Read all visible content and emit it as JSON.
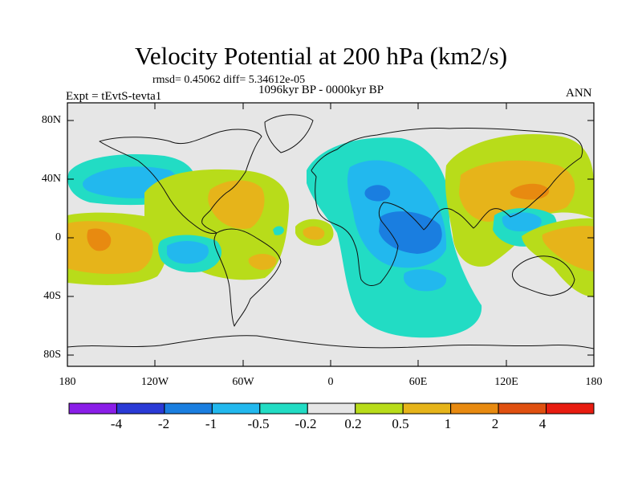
{
  "title": "Velocity Potential at 200 hPa (km2/s)",
  "stats_line": "rmsd= 0.45062 diff= 5.34612e-05",
  "period": "1096kyr BP - 0000kyr BP",
  "experiment": "Expt = tEvtS-tevta1",
  "season": "ANN",
  "map": {
    "lat_labels": [
      "80N",
      "40N",
      "0",
      "40S",
      "80S"
    ],
    "lon_labels": [
      "180",
      "120W",
      "60W",
      "0",
      "60E",
      "120E",
      "180"
    ]
  },
  "colorbar": {
    "colors": [
      "#8a1ee8",
      "#2a3ad6",
      "#1a7ee0",
      "#22b8ee",
      "#22dcc4",
      "#e6e6e6",
      "#b8dc1a",
      "#e6b41a",
      "#e88a10",
      "#e05010",
      "#e81c10"
    ],
    "labels": [
      "-4",
      "-2",
      "-1",
      "-0.5",
      "-0.2",
      "0.2",
      "0.5",
      "1",
      "2",
      "4"
    ]
  },
  "palette": {
    "neutral": "#e6e6e6",
    "neg_weak": "#22dcc4",
    "neg_mid": "#22b8ee",
    "neg_strong": "#1a7ee0",
    "pos_weak": "#b8dc1a",
    "pos_mid": "#e6b41a",
    "pos_strong": "#e88a10",
    "pos_very": "#e05010"
  }
}
